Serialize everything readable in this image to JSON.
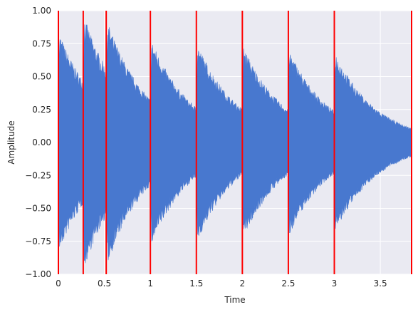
{
  "chart_data": {
    "type": "area",
    "title": "",
    "xlabel": "Time",
    "ylabel": "Amplitude",
    "xlim": [
      0,
      3.84
    ],
    "ylim": [
      -1.0,
      1.0
    ],
    "grid": true,
    "xticks": [
      0,
      0.5,
      1,
      1.5,
      2,
      2.5,
      3,
      3.5
    ],
    "xtick_labels": [
      "0",
      "0.5",
      "1",
      "1.5",
      "2",
      "2.5",
      "3",
      "3.5"
    ],
    "yticks": [
      -1.0,
      -0.75,
      -0.5,
      -0.25,
      0.0,
      0.25,
      0.5,
      0.75,
      1.0
    ],
    "ytick_labels": [
      "−1.00",
      "−0.75",
      "−0.50",
      "−0.25",
      "0.00",
      "0.25",
      "0.50",
      "0.75",
      "1.00"
    ],
    "series": [
      {
        "color": "#4878cf",
        "onsets": [
          {
            "t": 0.0,
            "amp": 0.85
          },
          {
            "t": 0.27,
            "amp": 0.98
          },
          {
            "t": 0.52,
            "amp": 0.95
          },
          {
            "t": 1.0,
            "amp": 0.8
          },
          {
            "t": 1.5,
            "amp": 0.77
          },
          {
            "t": 2.0,
            "amp": 0.75
          },
          {
            "t": 2.5,
            "amp": 0.72
          },
          {
            "t": 3.0,
            "amp": 0.7
          }
        ],
        "decay_per_second": 2.2,
        "end_amp": 0.08
      }
    ],
    "vertical_lines": {
      "color": "#ff0000",
      "x": [
        0.0,
        0.27,
        0.52,
        1.0,
        1.5,
        2.0,
        2.5,
        3.0,
        3.84
      ]
    },
    "colors": {
      "background": "#eaeaf2",
      "grid": "#ffffff",
      "text": "#262626"
    }
  }
}
